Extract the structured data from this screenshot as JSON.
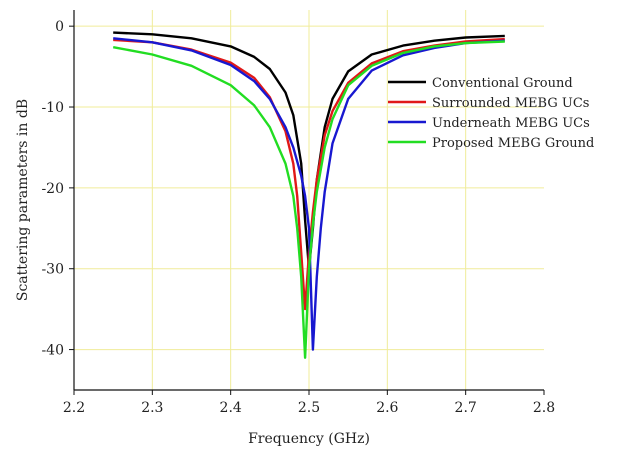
{
  "chart_data": {
    "type": "line",
    "xlabel": "Frequency (GHz)",
    "ylabel": "Scattering parameters in dB",
    "xlim": [
      2.2,
      2.8
    ],
    "ylim": [
      -45,
      2
    ],
    "xticks": [
      2.2,
      2.3,
      2.4,
      2.5,
      2.6,
      2.7,
      2.8
    ],
    "yticks": [
      0,
      -10,
      -20,
      -30,
      -40
    ],
    "xtick_labels": [
      "2.2",
      "2.3",
      "2.4",
      "2.5",
      "2.6",
      "2.7",
      "2.8"
    ],
    "ytick_labels": [
      "0",
      "-10",
      "-20",
      "-30",
      "-40"
    ],
    "grid": true,
    "grid_color": "#f0ec9a",
    "legend_position": "right",
    "series": [
      {
        "name": "Conventional Ground",
        "color": "#000000",
        "x": [
          2.25,
          2.3,
          2.35,
          2.4,
          2.43,
          2.45,
          2.47,
          2.48,
          2.49,
          2.495,
          2.5,
          2.505,
          2.51,
          2.52,
          2.53,
          2.55,
          2.58,
          2.62,
          2.66,
          2.7,
          2.75
        ],
        "y": [
          -0.8,
          -1.0,
          -1.5,
          -2.5,
          -3.8,
          -5.3,
          -8.2,
          -11.0,
          -17.0,
          -24.0,
          -30.0,
          -25.0,
          -19.0,
          -12.5,
          -9.0,
          -5.6,
          -3.5,
          -2.4,
          -1.8,
          -1.4,
          -1.2
        ]
      },
      {
        "name": "Surrounded MEBG UCs",
        "color": "#e01818",
        "x": [
          2.25,
          2.3,
          2.35,
          2.4,
          2.43,
          2.45,
          2.47,
          2.48,
          2.485,
          2.49,
          2.495,
          2.5,
          2.505,
          2.51,
          2.52,
          2.53,
          2.55,
          2.58,
          2.62,
          2.66,
          2.7,
          2.75
        ],
        "y": [
          -1.7,
          -2.0,
          -2.9,
          -4.5,
          -6.4,
          -8.8,
          -13.0,
          -17.0,
          -21.0,
          -28.0,
          -35.0,
          -28.0,
          -23.0,
          -19.0,
          -13.5,
          -10.5,
          -7.0,
          -4.6,
          -3.1,
          -2.4,
          -1.9,
          -1.6
        ]
      },
      {
        "name": "Underneath MEBG UCs",
        "color": "#1818d0",
        "x": [
          2.25,
          2.3,
          2.35,
          2.4,
          2.43,
          2.45,
          2.47,
          2.48,
          2.49,
          2.495,
          2.5,
          2.505,
          2.51,
          2.515,
          2.52,
          2.53,
          2.55,
          2.58,
          2.62,
          2.66,
          2.7,
          2.75
        ],
        "y": [
          -1.5,
          -2.0,
          -3.0,
          -4.8,
          -6.8,
          -9.0,
          -12.5,
          -15.0,
          -18.5,
          -21.0,
          -25.0,
          -40.0,
          -31.0,
          -25.0,
          -20.5,
          -14.5,
          -9.0,
          -5.5,
          -3.6,
          -2.7,
          -2.1,
          -1.8
        ]
      },
      {
        "name": "Proposed MEBG Ground",
        "color": "#22dd22",
        "x": [
          2.25,
          2.3,
          2.35,
          2.4,
          2.43,
          2.45,
          2.47,
          2.48,
          2.485,
          2.49,
          2.495,
          2.5,
          2.505,
          2.51,
          2.52,
          2.53,
          2.55,
          2.58,
          2.62,
          2.66,
          2.7,
          2.75
        ],
        "y": [
          -2.6,
          -3.5,
          -4.9,
          -7.3,
          -9.8,
          -12.5,
          -17.0,
          -21.0,
          -25.0,
          -31.0,
          -41.0,
          -30.0,
          -24.5,
          -20.5,
          -15.0,
          -11.5,
          -7.3,
          -4.9,
          -3.3,
          -2.5,
          -2.1,
          -1.9
        ]
      }
    ]
  }
}
